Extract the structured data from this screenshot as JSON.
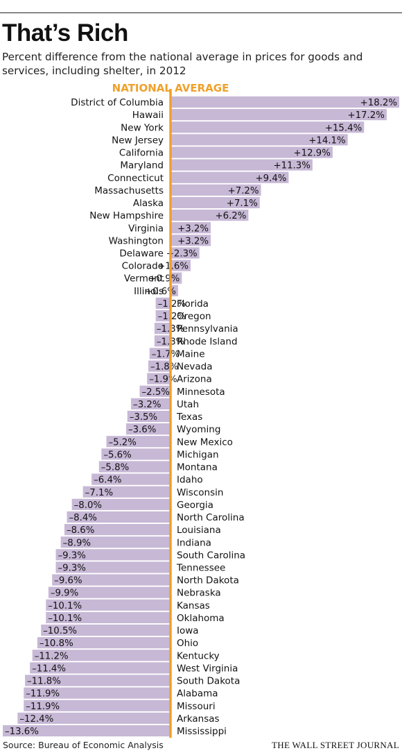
{
  "header": {
    "title": "That’s Rich",
    "subtitle": "Percent difference from the national average in prices for goods and services, including shelter, in 2012"
  },
  "footer": {
    "source": "Source: Bureau of Economic Analysis",
    "credit": "THE WALL STREET JOURNAL"
  },
  "colors": {
    "bar": "#c7b8d6",
    "average_line": "#f0a02a",
    "average_label": "#f0a02a",
    "text": "#111111"
  },
  "chart_data": {
    "type": "bar",
    "orientation": "horizontal",
    "title": "That’s Rich",
    "subtitle": "Percent difference from the national average in prices for goods and services, including shelter, in 2012",
    "reference_line": {
      "value": 0,
      "label": "NATIONAL AVERAGE"
    },
    "xlim": [
      -13.6,
      18.2
    ],
    "grid": false,
    "legend": "none",
    "categories": [
      "District of Columbia",
      "Hawaii",
      "New York",
      "New Jersey",
      "California",
      "Maryland",
      "Connecticut",
      "Massachusetts",
      "Alaska",
      "New Hampshire",
      "Virginia",
      "Washington",
      "Delaware",
      "Colorado",
      "Vermont",
      "Illinois",
      "Florida",
      "Oregon",
      "Pennsylvania",
      "Rhode Island",
      "Maine",
      "Nevada",
      "Arizona",
      "Minnesota",
      "Utah",
      "Texas",
      "Wyoming",
      "New Mexico",
      "Michigan",
      "Montana",
      "Idaho",
      "Wisconsin",
      "Georgia",
      "North Carolina",
      "Louisiana",
      "Indiana",
      "South Carolina",
      "Tennessee",
      "North Dakota",
      "Nebraska",
      "Kansas",
      "Oklahoma",
      "Iowa",
      "Ohio",
      "Kentucky",
      "West Virginia",
      "South Dakota",
      "Alabama",
      "Missouri",
      "Arkansas",
      "Mississippi"
    ],
    "values": [
      18.2,
      17.2,
      15.4,
      14.1,
      12.9,
      11.3,
      9.4,
      7.2,
      7.1,
      6.2,
      3.2,
      3.2,
      2.3,
      1.6,
      0.9,
      0.6,
      -1.2,
      -1.2,
      -1.3,
      -1.3,
      -1.7,
      -1.8,
      -1.9,
      -2.5,
      -3.2,
      -3.5,
      -3.6,
      -5.2,
      -5.6,
      -5.8,
      -6.4,
      -7.1,
      -8.0,
      -8.4,
      -8.6,
      -8.9,
      -9.3,
      -9.3,
      -9.6,
      -9.9,
      -10.1,
      -10.1,
      -10.5,
      -10.8,
      -11.2,
      -11.4,
      -11.8,
      -11.9,
      -11.9,
      -12.4,
      -13.6
    ],
    "value_labels": [
      "+18.2%",
      "+17.2%",
      "+15.4%",
      "+14.1%",
      "+12.9%",
      "+11.3%",
      "+9.4%",
      "+7.2%",
      "+7.1%",
      "+6.2%",
      "+3.2%",
      "+3.2%",
      "+2.3%",
      "+1.6%",
      "+0.9%",
      "+0.6%",
      "–1.2%",
      "–1.2%",
      "–1.3%",
      "–1.3%",
      "–1.7%",
      "–1.8%",
      "–1.9%",
      "–2.5%",
      "–3.2%",
      "–3.5%",
      "–3.6%",
      "–5.2%",
      "–5.6%",
      "–5.8%",
      "–6.4%",
      "–7.1%",
      "–8.0%",
      "–8.4%",
      "–8.6%",
      "–8.9%",
      "–9.3%",
      "–9.3%",
      "–9.6%",
      "–9.9%",
      "–10.1%",
      "–10.1%",
      "–10.5%",
      "–10.8%",
      "–11.2%",
      "–11.4%",
      "–11.8%",
      "–11.9%",
      "–11.9%",
      "–12.4%",
      "–13.6%"
    ]
  }
}
